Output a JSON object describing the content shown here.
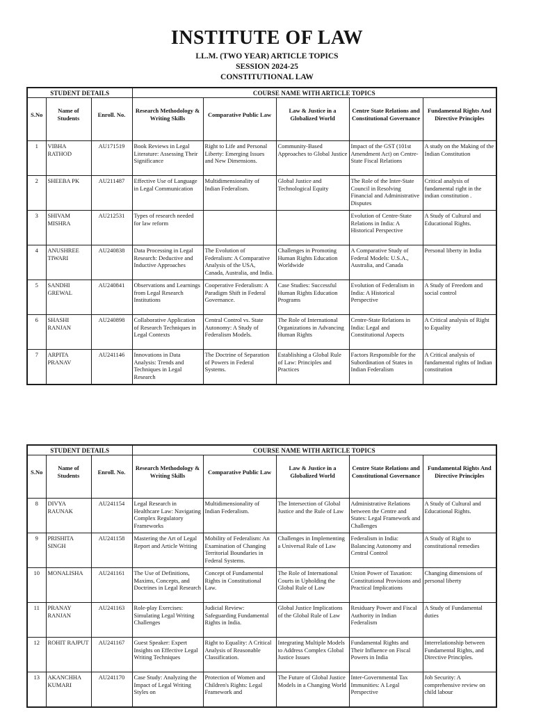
{
  "colors": {
    "background": "#ffffff",
    "text": "#151515",
    "border": "#1c1c1c"
  },
  "header": {
    "title": "INSTITUTE OF LAW",
    "subtitle_program": "LL.M. (TWO YEAR) ARTICLE TOPICS",
    "subtitle_session": "SESSION 2024-25",
    "subtitle_subject": "CONSTITUTIONAL LAW"
  },
  "table_schema": {
    "group_headers": [
      {
        "label": "STUDENT DETAILS",
        "colspan": 3
      },
      {
        "label": "COURSE NAME WITH ARTICLE TOPICS",
        "colspan": 5
      }
    ],
    "columns": [
      "S.No",
      "Name of Students",
      "Enroll. No.",
      "Research Methodology & Writing Skills",
      "Comparative Public Law",
      "Law & Justice in a Globalized World",
      "Centre State Relations and Constitutional Governance",
      "Fundamental Rights And Directive Principles"
    ]
  },
  "tables": [
    {
      "rows": [
        {
          "sno": "1",
          "name": "VIBHA RATHOD",
          "enroll": "AU171519",
          "topics": [
            "Book Reviews in Legal Literature: Assessing Their Significance",
            "Right to Life and Personal Liberty: Emerging Issues and New Dimensions.",
            "Community-Based Approaches to Global Justice",
            "Impact of the GST (101st Amendment Act) on Centre-State Fiscal Relations",
            "A study on the Making of the Indian Constitution"
          ]
        },
        {
          "sno": "2",
          "name": "SHEEBA PK",
          "enroll": "AU211487",
          "topics": [
            "Effective Use of Language in Legal Communication",
            "Multidimensionality of Indian Federalism.",
            "Global Justice and Technological Equity",
            "The Role of the Inter-State Council in Resolving Financial and Administrative Disputes",
            "Critical analysis of fundamental right in the indian constitution ."
          ]
        },
        {
          "sno": "3",
          "name": "SHIVAM MISHRA",
          "enroll": "AU212531",
          "topics": [
            "Types of research needed for law reform",
            "",
            "",
            "Evolution of Centre-State Relations in India: A Historical Perspective",
            "A Study of Cultural and Educational Rights."
          ]
        },
        {
          "sno": "4",
          "name": "ANUSHREE TIWARI",
          "enroll": "AU240838",
          "topics": [
            "Data Processing in Legal Research: Deductive and Inductive Approaches",
            "The Evolution of Federalism: A Comparative Analysis of the USA, Canada, Australia, and India.",
            "Challenges in Promoting Human Rights Education Worldwide",
            "A Comparative Study of Federal Models: U.S.A., Australia, and Canada",
            "Personal liberty in India"
          ]
        },
        {
          "sno": "5",
          "name": "SANDHI GREWAL",
          "enroll": "AU240841",
          "topics": [
            "Observations and Learnings from Legal Research Institutions",
            "Cooperative Federalism: A Paradigm Shift in Federal Governance.",
            "Case Studies: Successful Human Rights Education Programs",
            "Evolution of Federalism in India: A Historical Perspective",
            "A Study of Freedom and social control"
          ]
        },
        {
          "sno": "6",
          "name": "SHASHI RANJAN",
          "enroll": "AU240898",
          "topics": [
            "Collaborative Application of Research Techniques in Legal Contexts",
            "Central Control vs. State Autonomy: A Study of Federalism Models.",
            "The Role of International Organizations in Advancing Human Rights",
            "Centre-State Relations in India: Legal and Constitutional Aspects",
            "A Critical analysis of Right to Equality"
          ]
        },
        {
          "sno": "7",
          "name": "ARPITA PRANAV",
          "enroll": "AU241146",
          "topics": [
            "Innovations in Data Analysis: Trends and Techniques in Legal Research",
            "The Doctrine of Separation of Powers in Federal Systems.",
            "Establishing a Global Rule of Law: Principles and Practices",
            "Factors Responsible for the Subordination of States in Indian Federalism",
            "A Critical analysis of fundamental rights of Indian constitution"
          ]
        }
      ]
    },
    {
      "rows": [
        {
          "sno": "8",
          "name": "DIVYA RAUNAK",
          "enroll": "AU241154",
          "topics": [
            "Legal Research in Healthcare Law: Navigating Complex Regulatory Frameworks",
            "Multidimensionality of Indian Federalism.",
            "The Intersection of Global Justice and the Rule of Law",
            "Administrative Relations between the Centre and States: Legal Framework and Challenges",
            "A Study of Cultural and Educational Rights."
          ]
        },
        {
          "sno": "9",
          "name": "PRISHITA SINGH",
          "enroll": "AU241158",
          "topics": [
            "Mastering the Art of Legal Report and Article Writing",
            "Mobility of Federalism: An Examination of Changing Territorial Boundaries in Federal Systems.",
            "Challenges in Implementing a Universal Rule of Law",
            "Federalism in India: Balancing Autonomy and Central Control",
            "A Study of Right to constitutional remedies"
          ]
        },
        {
          "sno": "10",
          "name": "MONALISHA",
          "enroll": "AU241161",
          "topics": [
            "The Use of Definitions, Maxims, Concepts, and Doctrines in Legal Research",
            "Concept of Fundamental Rights in Constitutional Law.",
            "The Role of International Courts in Upholding the Global Rule of Law",
            "Union Power of Taxation: Constitutional Provisions and Practical Implications",
            "Changing dimensions of personal liberty"
          ]
        },
        {
          "sno": "11",
          "name": "PRANAY RANJAN",
          "enroll": "AU241163",
          "topics": [
            "Role-play Exercises: Simulating Legal Writing Challenges",
            "Judicial Review: Safeguarding Fundamental Rights in India.",
            "Global Justice Implications of the Global Rule of Law",
            "Residuary Power and Fiscal Authority in Indian Federalism",
            "A Study of Fundamental duties"
          ]
        },
        {
          "sno": "12",
          "name": "ROHIT RAJPUT",
          "enroll": "AU241167",
          "topics": [
            "Guest Speaker: Expert Insights on Effective Legal Writing Techniques",
            "Right to Equality: A Critical Analysis of Reasonable Classification.",
            "Integrating Multiple Models to Address Complex Global Justice Issues",
            "Fundamental Rights and Their Influence on Fiscal Powers in India",
            "Interrelationship between Fundamental Rights, and Directive Principles."
          ]
        },
        {
          "sno": "13",
          "name": "AKANCHHA KUMARI",
          "enroll": "AU241170",
          "topics": [
            "Case Study: Analyzing the Impact of Legal Writing Styles on",
            "Protection of Women and Children's Rights: Legal Framework and",
            "The Future of Global Justice Models in a Changing World",
            "Inter-Governmental Tax Immunities: A Legal Perspective",
            "Job Security: A comprehensive review on child labour"
          ]
        }
      ]
    }
  ]
}
